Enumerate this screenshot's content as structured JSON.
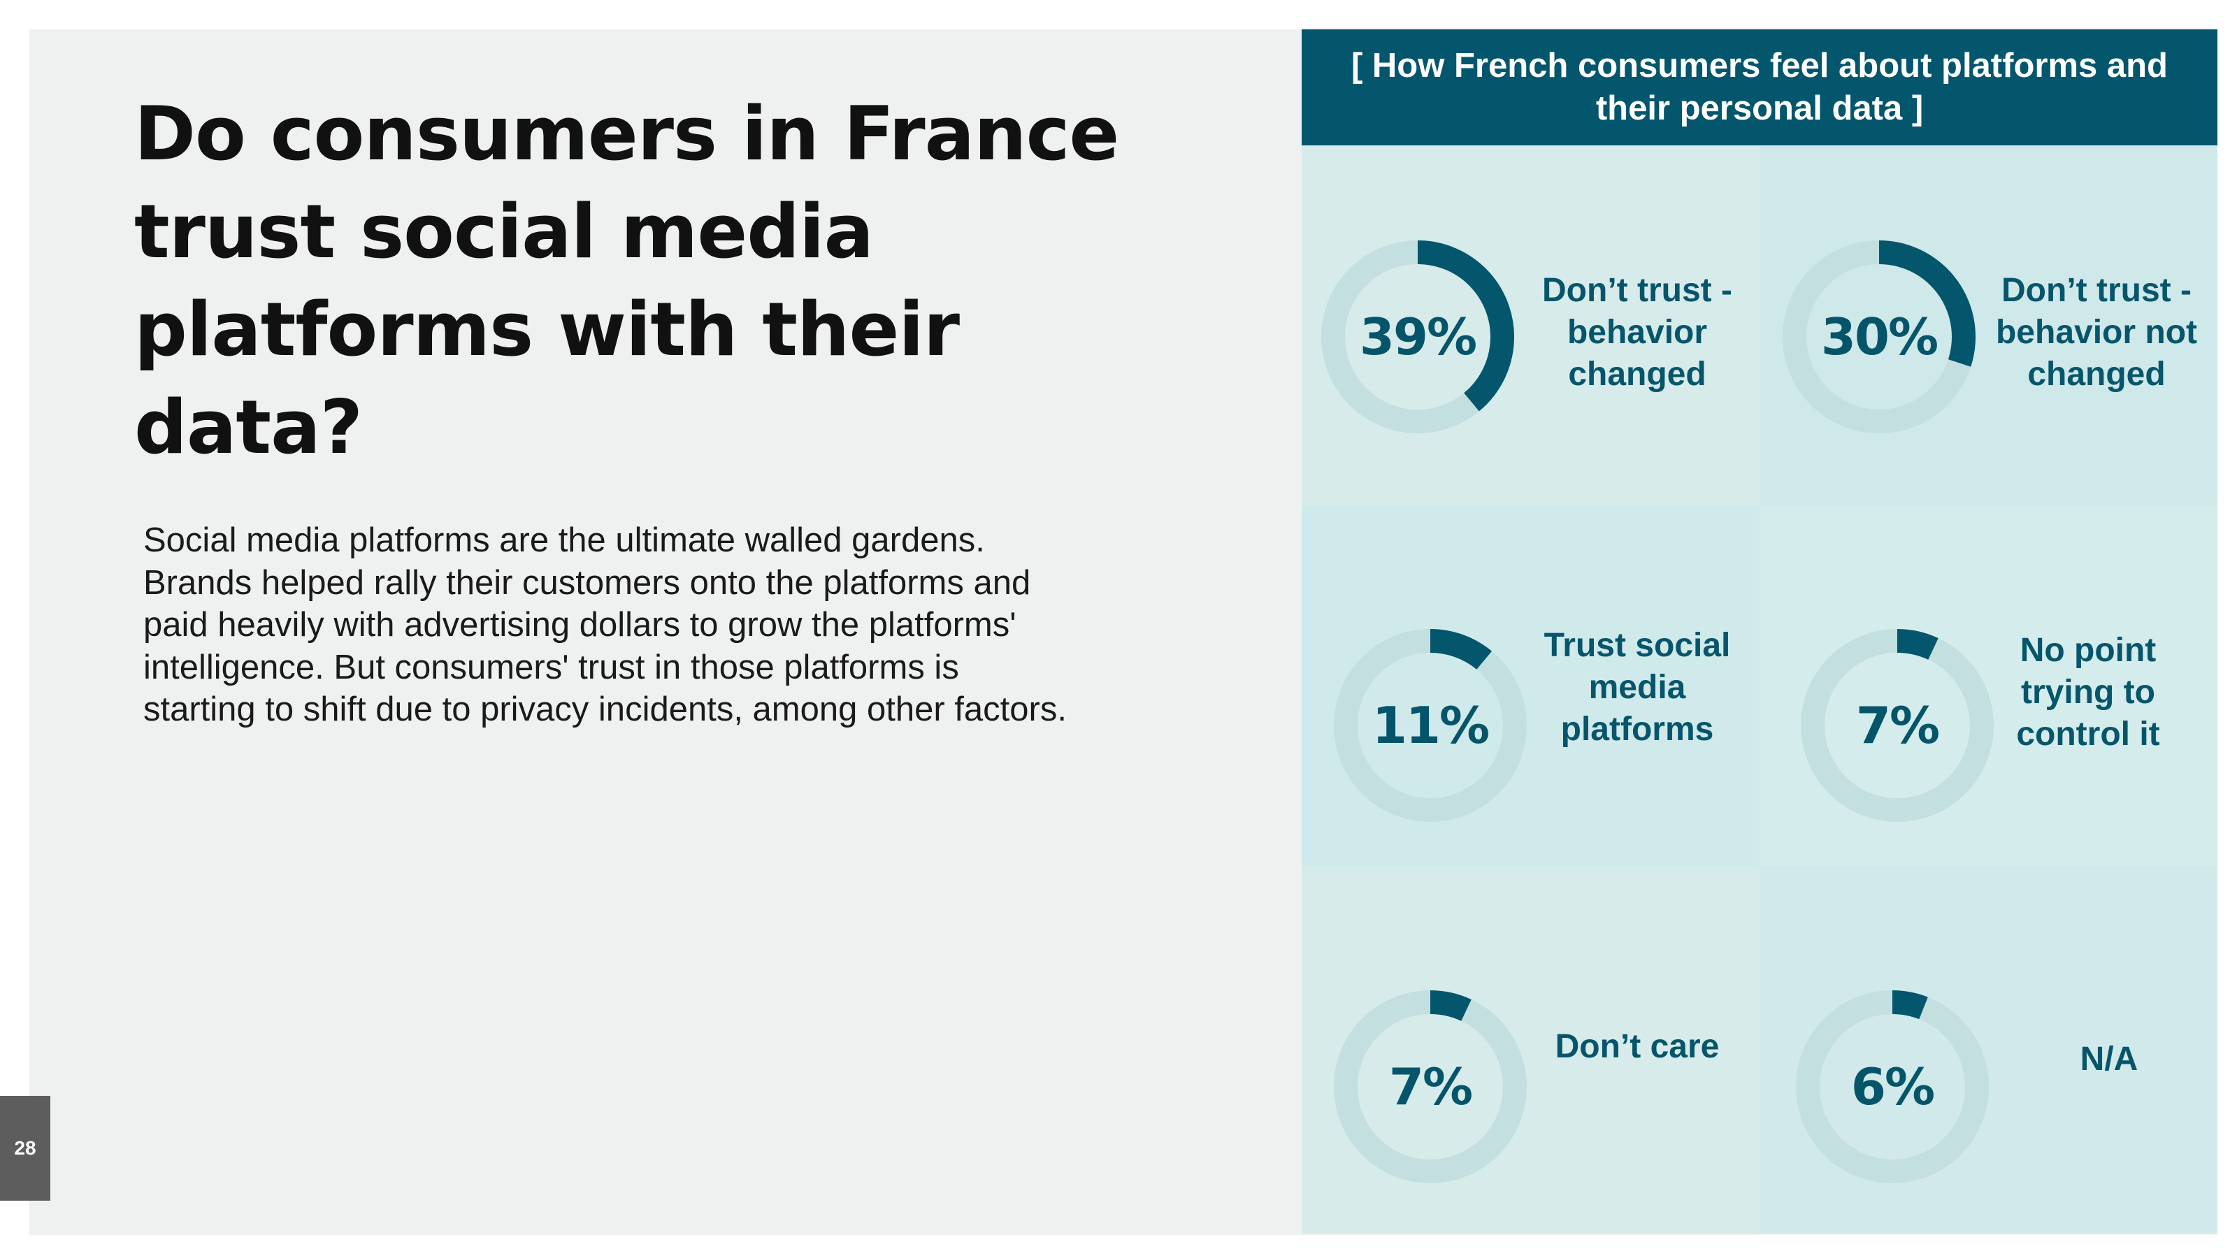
{
  "slide": {
    "title": "Do consumers in France trust social media platforms with their data?",
    "body": "Social media platforms are the ultimate walled gardens. Brands helped rally their customers onto the platforms and paid heavily with advertising dollars to grow the platforms' intelligence. But consumers' trust in those platforms is starting to shift due to privacy incidents, among other factors.",
    "page_number": "28"
  },
  "colors": {
    "accent": "#03566c",
    "ring_track": "#c3dfe0",
    "text_dark": "#111111",
    "slide_background": "#eff1f0",
    "page_badge": "#5d5d5d"
  },
  "chart_data": {
    "type": "donut",
    "title": "[ How French consumers feel about platforms and their personal data ]",
    "unit": "%",
    "categories": [
      "Don’t trust - behavior changed",
      "Don’t trust - behavior not changed",
      "Trust social media platforms",
      "No point trying to control it",
      "Don’t care",
      "N/A"
    ],
    "values": [
      39,
      30,
      11,
      7,
      7,
      6
    ],
    "labels": [
      "39%",
      "30%",
      "11%",
      "7%",
      "7%",
      "6%"
    ]
  }
}
